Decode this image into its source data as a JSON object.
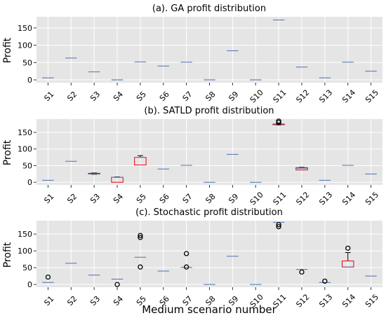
{
  "chart_data": [
    {
      "type": "box",
      "title": "(a). GA profit distribution",
      "xlabel": "",
      "ylabel": "Profit",
      "ylim": [
        -8,
        182
      ],
      "yticks": [
        0,
        50,
        100,
        150
      ],
      "categories": [
        "S1",
        "S2",
        "S3",
        "S4",
        "S5",
        "S6",
        "S7",
        "S8",
        "S9",
        "S10",
        "S11",
        "S12",
        "S13",
        "S14",
        "S15"
      ],
      "boxes": [
        {
          "q1": 6,
          "median": 6,
          "q3": 6,
          "whisker_low": 6,
          "whisker_high": 6,
          "outliers": []
        },
        {
          "q1": 63,
          "median": 63,
          "q3": 63,
          "whisker_low": 63,
          "whisker_high": 63,
          "outliers": []
        },
        {
          "q1": 23,
          "median": 23,
          "q3": 23,
          "whisker_low": 23,
          "whisker_high": 23,
          "outliers": []
        },
        {
          "q1": 0,
          "median": 0,
          "q3": 0,
          "whisker_low": 0,
          "whisker_high": 0,
          "outliers": []
        },
        {
          "q1": 52,
          "median": 52,
          "q3": 52,
          "whisker_low": 52,
          "whisker_high": 52,
          "outliers": []
        },
        {
          "q1": 40,
          "median": 40,
          "q3": 40,
          "whisker_low": 40,
          "whisker_high": 40,
          "outliers": []
        },
        {
          "q1": 51,
          "median": 51,
          "q3": 51,
          "whisker_low": 51,
          "whisker_high": 51,
          "outliers": []
        },
        {
          "q1": 0,
          "median": 0,
          "q3": 0,
          "whisker_low": 0,
          "whisker_high": 0,
          "outliers": []
        },
        {
          "q1": 84,
          "median": 84,
          "q3": 84,
          "whisker_low": 84,
          "whisker_high": 84,
          "outliers": []
        },
        {
          "q1": 0,
          "median": 0,
          "q3": 0,
          "whisker_low": 0,
          "whisker_high": 0,
          "outliers": []
        },
        {
          "q1": 173,
          "median": 173,
          "q3": 173,
          "whisker_low": 173,
          "whisker_high": 173,
          "outliers": []
        },
        {
          "q1": 37,
          "median": 37,
          "q3": 37,
          "whisker_low": 37,
          "whisker_high": 37,
          "outliers": []
        },
        {
          "q1": 6,
          "median": 6,
          "q3": 6,
          "whisker_low": 6,
          "whisker_high": 6,
          "outliers": []
        },
        {
          "q1": 51,
          "median": 51,
          "q3": 51,
          "whisker_low": 51,
          "whisker_high": 51,
          "outliers": []
        },
        {
          "q1": 25,
          "median": 25,
          "q3": 25,
          "whisker_low": 25,
          "whisker_high": 25,
          "outliers": []
        }
      ]
    },
    {
      "type": "box",
      "title": "(b). SATLD profit distribution",
      "xlabel": "",
      "ylabel": "Profit",
      "ylim": [
        -8,
        190
      ],
      "yticks": [
        0,
        50,
        100,
        150
      ],
      "categories": [
        "S1",
        "S2",
        "S3",
        "S4",
        "S5",
        "S6",
        "S7",
        "S8",
        "S9",
        "S10",
        "S11",
        "S12",
        "S13",
        "S14",
        "S15"
      ],
      "boxes": [
        {
          "q1": 6,
          "median": 6,
          "q3": 6,
          "whisker_low": 6,
          "whisker_high": 6,
          "outliers": []
        },
        {
          "q1": 63,
          "median": 63,
          "q3": 63,
          "whisker_low": 63,
          "whisker_high": 63,
          "outliers": []
        },
        {
          "q1": 25,
          "median": 25,
          "q3": 27,
          "whisker_low": 24,
          "whisker_high": 28,
          "outliers": []
        },
        {
          "q1": 0,
          "median": 15,
          "q3": 15,
          "whisker_low": 0,
          "whisker_high": 16,
          "outliers": []
        },
        {
          "q1": 52,
          "median": 75,
          "q3": 75,
          "whisker_low": 52,
          "whisker_high": 80,
          "outliers": []
        },
        {
          "q1": 40,
          "median": 40,
          "q3": 40,
          "whisker_low": 40,
          "whisker_high": 40,
          "outliers": []
        },
        {
          "q1": 51,
          "median": 51,
          "q3": 51,
          "whisker_low": 51,
          "whisker_high": 51,
          "outliers": []
        },
        {
          "q1": 0,
          "median": 0,
          "q3": 0,
          "whisker_low": 0,
          "whisker_high": 0,
          "outliers": []
        },
        {
          "q1": 84,
          "median": 84,
          "q3": 84,
          "whisker_low": 84,
          "whisker_high": 84,
          "outliers": []
        },
        {
          "q1": 0,
          "median": 0,
          "q3": 0,
          "whisker_low": 0,
          "whisker_high": 0,
          "outliers": []
        },
        {
          "q1": 173,
          "median": 173,
          "q3": 175,
          "whisker_low": 172,
          "whisker_high": 176,
          "outliers": [
            180,
            184
          ]
        },
        {
          "q1": 37,
          "median": 42,
          "q3": 44,
          "whisker_low": 37,
          "whisker_high": 45,
          "outliers": []
        },
        {
          "q1": 6,
          "median": 6,
          "q3": 6,
          "whisker_low": 6,
          "whisker_high": 6,
          "outliers": []
        },
        {
          "q1": 51,
          "median": 51,
          "q3": 51,
          "whisker_low": 51,
          "whisker_high": 51,
          "outliers": []
        },
        {
          "q1": 25,
          "median": 25,
          "q3": 25,
          "whisker_low": 25,
          "whisker_high": 25,
          "outliers": []
        }
      ]
    },
    {
      "type": "box",
      "title": "(c). Stochastic profit distribution",
      "xlabel": "Medium scenario number",
      "ylabel": "Profit",
      "ylim": [
        -8,
        190
      ],
      "yticks": [
        0,
        50,
        100,
        150
      ],
      "categories": [
        "S1",
        "S2",
        "S3",
        "S4",
        "S5",
        "S6",
        "S7",
        "S8",
        "S9",
        "S10",
        "S11",
        "S12",
        "S13",
        "S14",
        "S15"
      ],
      "boxes": [
        {
          "q1": 6,
          "median": 6,
          "q3": 6,
          "whisker_low": 6,
          "whisker_high": 6,
          "outliers": [
            22
          ]
        },
        {
          "q1": 63,
          "median": 63,
          "q3": 63,
          "whisker_low": 63,
          "whisker_high": 63,
          "outliers": []
        },
        {
          "q1": 28,
          "median": 28,
          "q3": 28,
          "whisker_low": 28,
          "whisker_high": 28,
          "outliers": []
        },
        {
          "q1": 16,
          "median": 16,
          "q3": 16,
          "whisker_low": 16,
          "whisker_high": 16,
          "outliers": [
            0
          ]
        },
        {
          "q1": 81,
          "median": 81,
          "q3": 81,
          "whisker_low": 81,
          "whisker_high": 81,
          "outliers": [
            52,
            140,
            146
          ]
        },
        {
          "q1": 40,
          "median": 40,
          "q3": 40,
          "whisker_low": 40,
          "whisker_high": 40,
          "outliers": []
        },
        {
          "q1": 51,
          "median": 51,
          "q3": 51,
          "whisker_low": 51,
          "whisker_high": 51,
          "outliers": [
            52,
            92
          ]
        },
        {
          "q1": 0,
          "median": 0,
          "q3": 0,
          "whisker_low": 0,
          "whisker_high": 0,
          "outliers": []
        },
        {
          "q1": 84,
          "median": 84,
          "q3": 84,
          "whisker_low": 84,
          "whisker_high": 84,
          "outliers": []
        },
        {
          "q1": 0,
          "median": 0,
          "q3": 0,
          "whisker_low": 0,
          "whisker_high": 0,
          "outliers": []
        },
        {
          "q1": 185,
          "median": 185,
          "q3": 185,
          "whisker_low": 185,
          "whisker_high": 185,
          "outliers": [
            172,
            178
          ]
        },
        {
          "q1": 45,
          "median": 45,
          "q3": 45,
          "whisker_low": 45,
          "whisker_high": 45,
          "outliers": [
            37
          ]
        },
        {
          "q1": 6,
          "median": 6,
          "q3": 6,
          "whisker_low": 6,
          "whisker_high": 6,
          "outliers": [
            10
          ]
        },
        {
          "q1": 52,
          "median": 52,
          "q3": 70,
          "whisker_low": 52,
          "whisker_high": 95,
          "outliers": [
            108
          ]
        },
        {
          "q1": 25,
          "median": 25,
          "q3": 25,
          "whisker_low": 25,
          "whisker_high": 25,
          "outliers": []
        }
      ]
    }
  ],
  "colors": {
    "plot_background": "#e5e5e5",
    "grid": "#ffffff",
    "box": "#e8000b",
    "median": "#4c72b0",
    "whisker": "#000000",
    "outlier": "#000000"
  }
}
